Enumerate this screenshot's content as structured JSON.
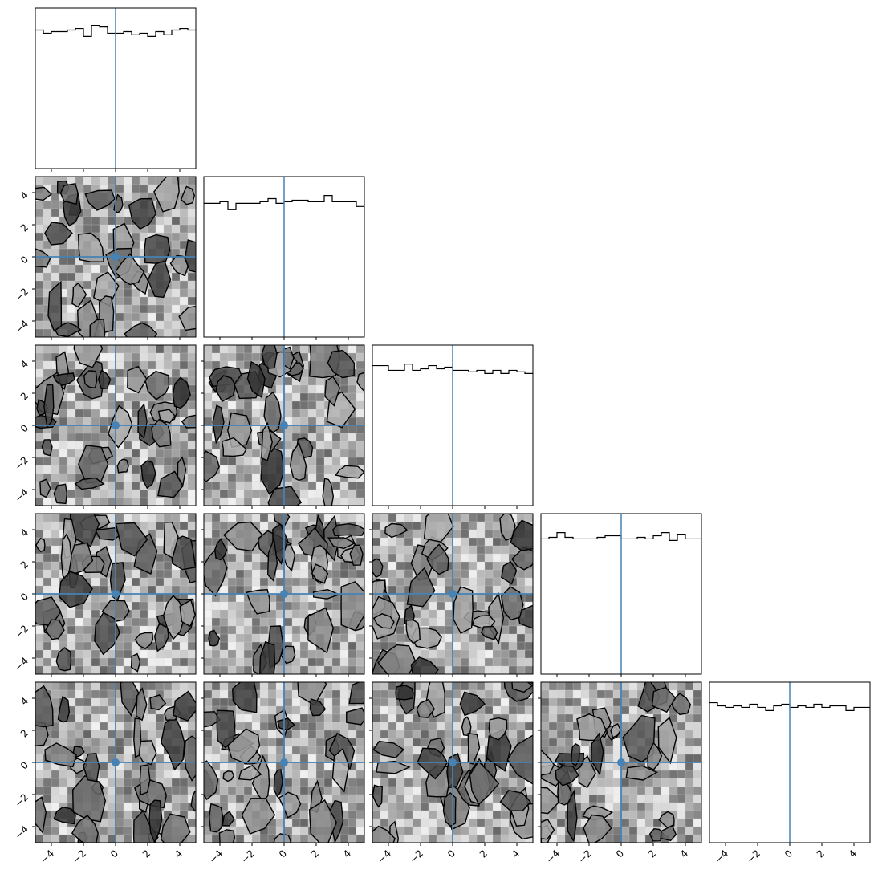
{
  "chart_data": {
    "type": "corner",
    "n_params": 5,
    "range": [
      -5,
      5
    ],
    "ticks": [
      -4,
      -2,
      0,
      2,
      4
    ],
    "tick_labels": [
      "−4",
      "−2",
      "0",
      "2",
      "4"
    ],
    "truth": [
      0,
      0,
      0,
      0,
      0
    ],
    "bins": 20,
    "contour_levels": 3,
    "colors": {
      "hist_line": "#000000",
      "truth": "#4682b4",
      "contour_line": "#000000",
      "density_light": "#f2f2f2",
      "density_dark": "#1a1a1a",
      "axes": "#000000",
      "background": "#ffffff"
    },
    "histograms": [
      {
        "param": 1,
        "values": [
          0.88,
          0.86,
          0.87,
          0.87,
          0.88,
          0.89,
          0.84,
          0.91,
          0.9,
          0.86,
          0.86,
          0.87,
          0.85,
          0.86,
          0.84,
          0.87,
          0.85,
          0.88,
          0.89,
          0.88
        ]
      },
      {
        "param": 2,
        "values": [
          0.85,
          0.85,
          0.86,
          0.81,
          0.85,
          0.85,
          0.85,
          0.86,
          0.88,
          0.85,
          0.86,
          0.87,
          0.87,
          0.86,
          0.86,
          0.9,
          0.86,
          0.86,
          0.86,
          0.83
        ]
      },
      {
        "param": 3,
        "values": [
          0.89,
          0.89,
          0.86,
          0.86,
          0.9,
          0.86,
          0.87,
          0.89,
          0.87,
          0.88,
          0.86,
          0.86,
          0.85,
          0.86,
          0.84,
          0.86,
          0.84,
          0.86,
          0.85,
          0.84
        ]
      },
      {
        "param": 4,
        "values": [
          0.86,
          0.87,
          0.9,
          0.87,
          0.86,
          0.86,
          0.86,
          0.87,
          0.88,
          0.88,
          0.86,
          0.86,
          0.87,
          0.86,
          0.88,
          0.9,
          0.85,
          0.89,
          0.86,
          0.86
        ]
      },
      {
        "param": 5,
        "values": [
          0.89,
          0.87,
          0.86,
          0.87,
          0.86,
          0.88,
          0.86,
          0.84,
          0.87,
          0.88,
          0.86,
          0.87,
          0.86,
          0.88,
          0.86,
          0.87,
          0.87,
          0.84,
          0.86,
          0.86
        ]
      }
    ]
  }
}
